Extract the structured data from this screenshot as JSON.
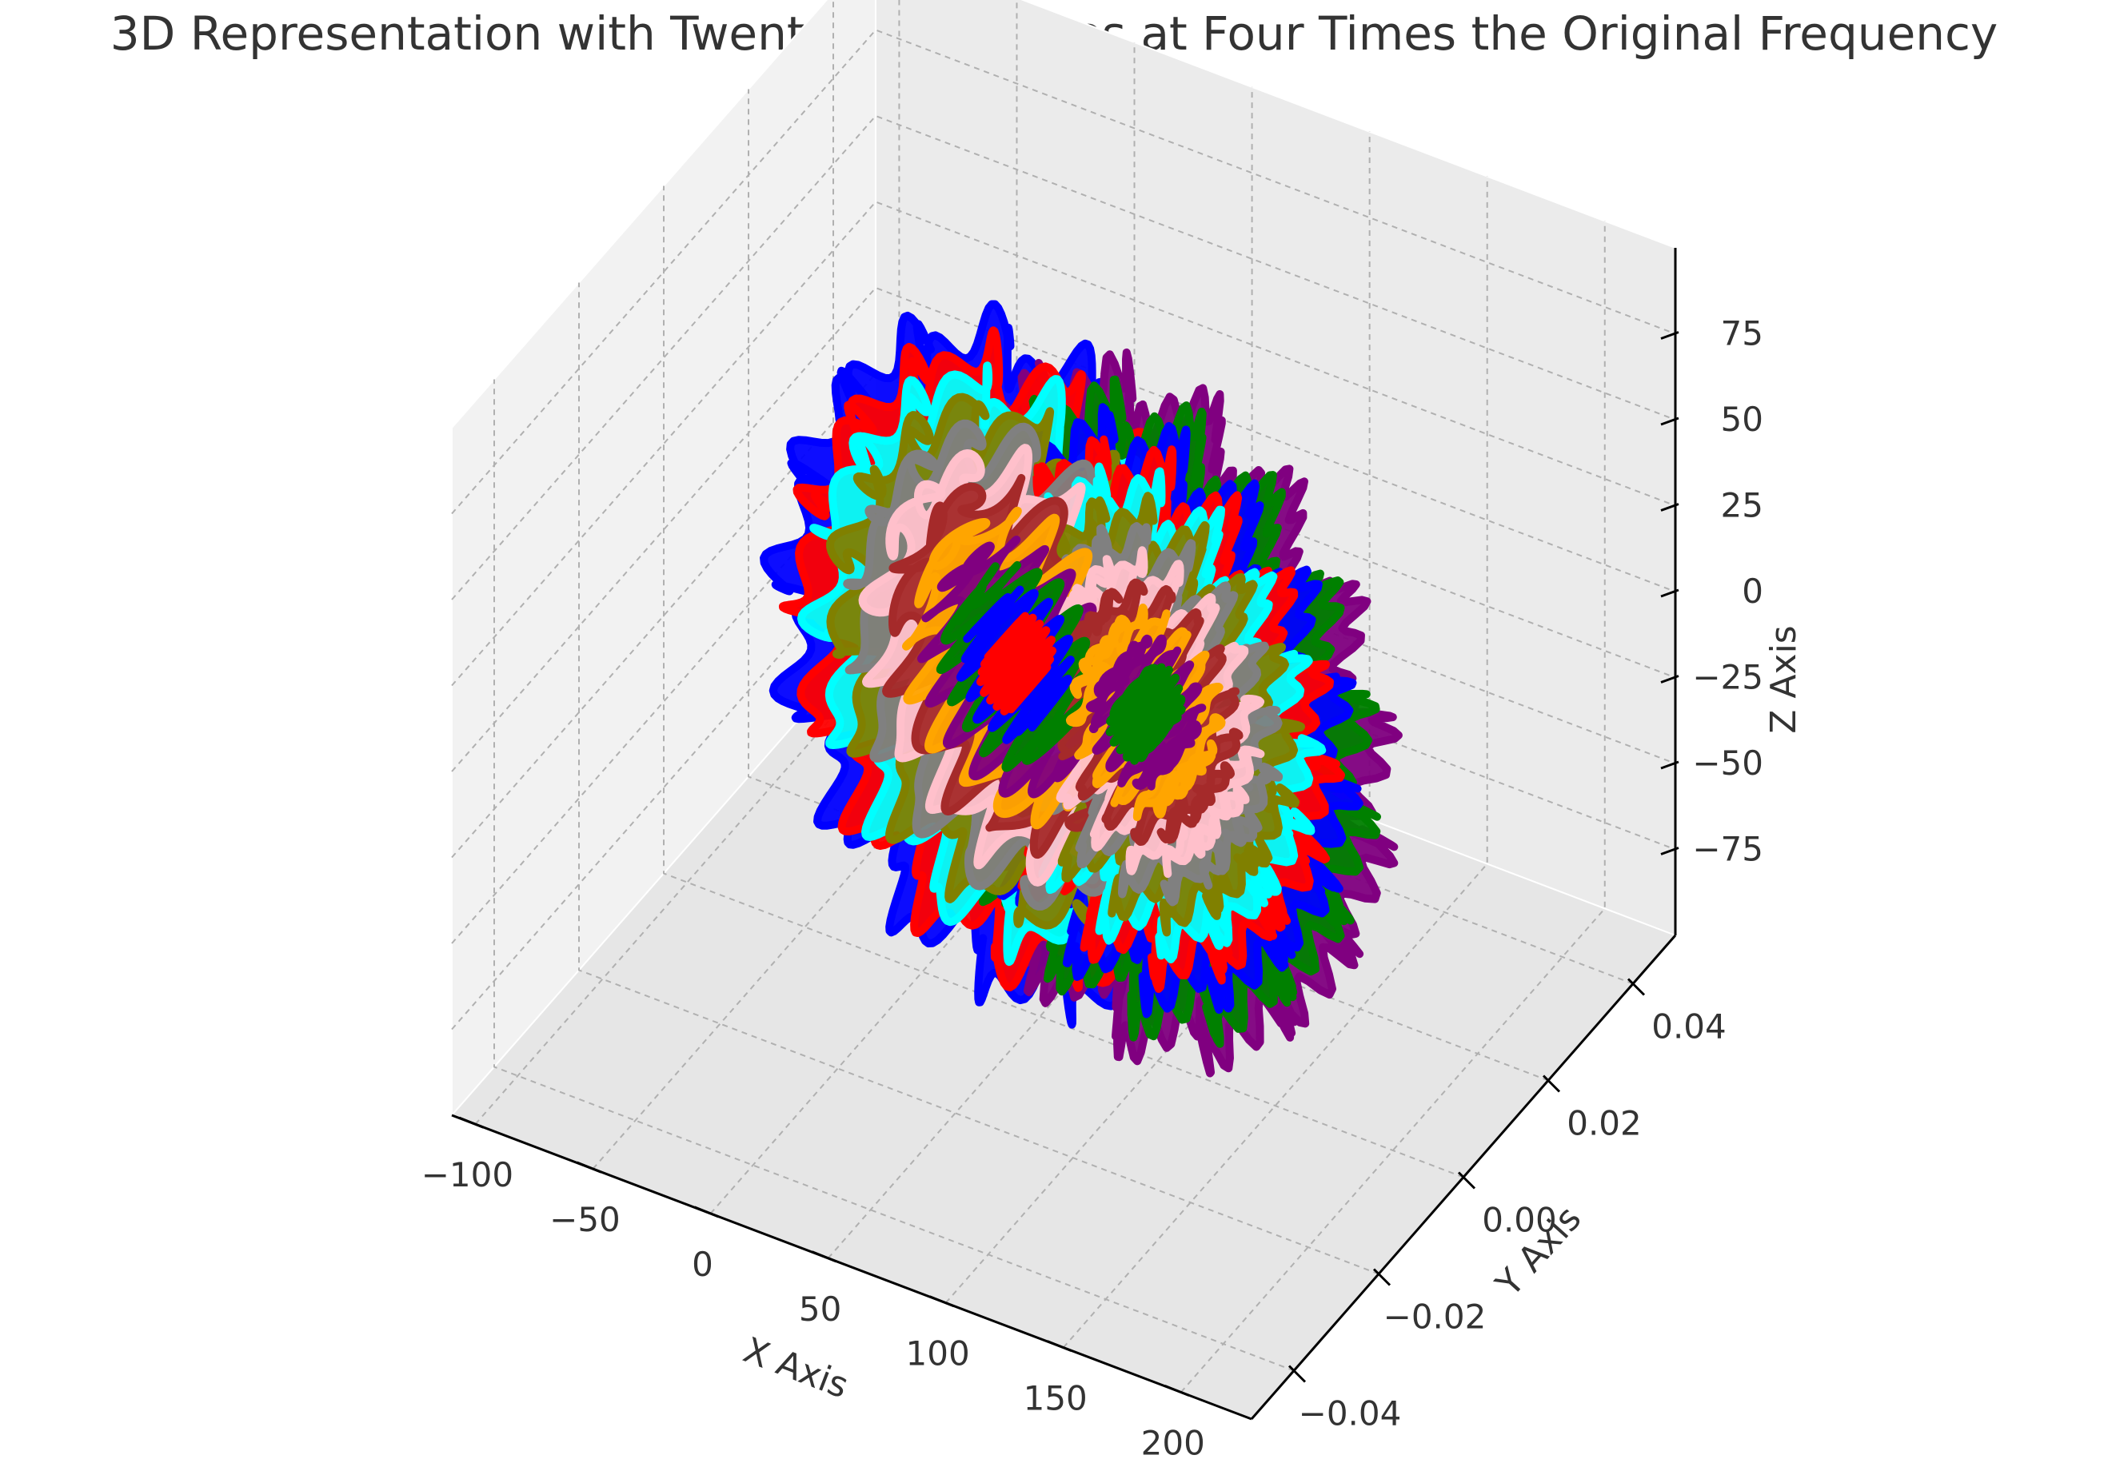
{
  "chart_data": {
    "type": "line3d",
    "title": "3D Representation with Twenty-Four Curves at Four Times the Original Frequency",
    "xlabel": "X Axis",
    "ylabel": "Y Axis",
    "zlabel": "Z Axis",
    "xlim": [
      -110,
      230
    ],
    "ylim": [
      -0.05,
      0.05
    ],
    "zlim": [
      -100,
      100
    ],
    "xticks": [
      -100,
      -50,
      0,
      50,
      100,
      150,
      200
    ],
    "yticks": [
      -0.04,
      -0.02,
      0.0,
      0.02,
      0.04
    ],
    "zticks": [
      75,
      50,
      25,
      0,
      -25,
      -50,
      -75
    ],
    "xtick_labels": [
      "−100",
      "−50",
      "0",
      "50",
      "100",
      "150",
      "200"
    ],
    "ytick_labels": [
      "−0.04",
      "−0.02",
      "0.00",
      "0.02",
      "0.04"
    ],
    "ztick_labels": [
      "75",
      "50",
      "25",
      "0",
      "−25",
      "−50",
      "−75"
    ],
    "grid": true,
    "pane_color": "#f2f2f2",
    "gridline_color": "#b0b0b0",
    "series_colors": [
      "#ff0000",
      "#0000ff",
      "#008000",
      "#800080",
      "#ffa500",
      "#a52a2a",
      "#ffc0cb",
      "#808080",
      "#808000",
      "#00ffff"
    ],
    "series": [
      {
        "curve": 1,
        "color": "#ff0000",
        "radius": 8
      },
      {
        "curve": 2,
        "color": "#0000ff",
        "radius": 16
      },
      {
        "curve": 3,
        "color": "#008000",
        "radius": 24
      },
      {
        "curve": 4,
        "color": "#800080",
        "radius": 32
      },
      {
        "curve": 5,
        "color": "#ffa500",
        "radius": 40
      },
      {
        "curve": 6,
        "color": "#a52a2a",
        "radius": 48
      },
      {
        "curve": 7,
        "color": "#ffc0cb",
        "radius": 56
      },
      {
        "curve": 8,
        "color": "#808080",
        "radius": 64
      },
      {
        "curve": 9,
        "color": "#808000",
        "radius": 72
      },
      {
        "curve": 10,
        "color": "#00ffff",
        "radius": 80
      },
      {
        "curve": 11,
        "color": "#ff0000",
        "radius": 88
      },
      {
        "curve": 12,
        "color": "#0000ff",
        "radius": 96
      },
      {
        "curve": 13,
        "color": "#008000",
        "radius": 8
      },
      {
        "curve": 14,
        "color": "#800080",
        "radius": 16
      },
      {
        "curve": 15,
        "color": "#ffa500",
        "radius": 24
      },
      {
        "curve": 16,
        "color": "#a52a2a",
        "radius": 32
      },
      {
        "curve": 17,
        "color": "#ffc0cb",
        "radius": 40
      },
      {
        "curve": 18,
        "color": "#808080",
        "radius": 48
      },
      {
        "curve": 19,
        "color": "#808000",
        "radius": 56
      },
      {
        "curve": 20,
        "color": "#00ffff",
        "radius": 64
      },
      {
        "curve": 21,
        "color": "#ff0000",
        "radius": 72
      },
      {
        "curve": 22,
        "color": "#0000ff",
        "radius": 80
      },
      {
        "curve": 23,
        "color": "#008000",
        "radius": 88
      },
      {
        "curve": 24,
        "color": "#800080",
        "radius": 96
      }
    ]
  }
}
